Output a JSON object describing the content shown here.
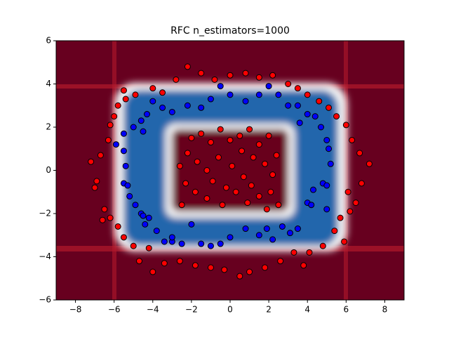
{
  "chart_data": {
    "type": "scatter",
    "title": "RFC n_estimators=1000",
    "xlim": [
      -9,
      9
    ],
    "ylim": [
      -6,
      6
    ],
    "xticks": [
      {
        "value": -8,
        "label": "−8"
      },
      {
        "value": -6,
        "label": "−6"
      },
      {
        "value": -4,
        "label": "−4"
      },
      {
        "value": -2,
        "label": "−2"
      },
      0,
      2,
      4,
      6,
      8
    ],
    "yticks": [
      {
        "value": -6,
        "label": "−6"
      },
      {
        "value": -4,
        "label": "−4"
      },
      {
        "value": -2,
        "label": "−2"
      },
      0,
      2,
      4,
      6
    ],
    "series": [
      {
        "color": "#0000ff",
        "x": [
          -5.9,
          -5.5,
          -5.4,
          -5.5,
          -5.3,
          -5.2,
          -4.9,
          -4.6,
          -4.5,
          -4.4,
          -4.2,
          -3.8,
          -3.4,
          -3.0,
          -2.0,
          -1.5,
          -1.0,
          -0.5,
          0,
          0.8,
          1.5,
          1.9,
          2.2,
          2.7,
          3.1,
          3.5,
          4.0,
          4.2,
          4.3,
          4.8,
          5.0,
          5.0,
          5.2,
          5.1,
          5.0,
          4.7,
          4.4,
          4.0,
          3.6,
          3.5,
          3.0,
          2.5,
          2.0,
          1.5,
          0.8,
          0,
          -0.5,
          -1.0,
          -1.5,
          -2.2,
          -3.0,
          -3.5,
          -4.0,
          -4.3,
          -4.6,
          -5.0,
          -4.5,
          -5.5,
          -3.0,
          -2.5
        ],
        "values": [
          1.2,
          0.9,
          0.2,
          -0.6,
          -0.7,
          -1.2,
          -1.6,
          -2.0,
          -2.1,
          -2.5,
          -2.2,
          -2.8,
          -3.3,
          -3.3,
          -2.5,
          -3.4,
          -3.5,
          -3.4,
          -3.1,
          -2.7,
          -3.0,
          -2.7,
          -3.2,
          -2.6,
          -2.9,
          -2.7,
          -1.5,
          -1.6,
          -0.9,
          -0.6,
          -1.8,
          -0.7,
          0.3,
          1.0,
          1.4,
          2.0,
          2.5,
          2.6,
          2.2,
          3.0,
          3.0,
          3.5,
          3.9,
          3.5,
          3.2,
          3.5,
          3.9,
          3.3,
          2.9,
          3.0,
          2.7,
          2.9,
          3.2,
          2.6,
          2.3,
          2.0,
          1.8,
          1.7,
          -3.1,
          -3.4
        ]
      },
      {
        "color": "#ff0000",
        "x": [
          -7.2,
          -6.9,
          -6.7,
          -6.5,
          -6.3,
          -6.2,
          -6.0,
          -5.8,
          -5.5,
          -5.4,
          -4.9,
          -4.0,
          -3.5,
          -2.8,
          -2.2,
          -1.5,
          -0.8,
          0,
          0.8,
          1.5,
          2.2,
          3.0,
          3.5,
          4.0,
          4.6,
          5.1,
          5.5,
          6.0,
          6.3,
          6.7,
          7.2,
          6.8,
          6.5,
          6.2,
          5.7,
          5.4,
          4.8,
          4.1,
          3.3,
          2.6,
          1.8,
          1.0,
          0.5,
          -0.3,
          -1.0,
          -1.8,
          -2.6,
          -3.4,
          -4.0,
          -4.7,
          -5.0,
          -5.5,
          -6.2,
          -5.8,
          -6.6,
          -7.0,
          -4.2,
          3.8,
          5.9,
          6.1,
          -2.0,
          -1.5,
          -1.0,
          -0.5,
          0,
          0.5,
          1.0,
          1.5,
          2.0,
          -2.2,
          -1.7,
          -1.2,
          -0.6,
          0.1,
          0.7,
          1.2,
          1.8,
          2.2,
          -2.3,
          -1.8,
          -1.2,
          -0.4,
          0.3,
          0.9,
          1.5,
          2.1,
          2.5,
          -2.5,
          -0.9,
          0.6,
          2.4,
          -2.6,
          1.1,
          -0.2,
          1.9
        ],
        "values": [
          0.4,
          -0.5,
          0.7,
          -1.8,
          1.4,
          2.1,
          2.5,
          3.0,
          3.7,
          3.3,
          3.5,
          3.8,
          3.6,
          4.2,
          4.8,
          4.5,
          4.2,
          4.4,
          4.5,
          4.3,
          4.4,
          4.0,
          3.8,
          3.5,
          3.2,
          2.9,
          2.5,
          2.1,
          1.4,
          0.8,
          0.3,
          -0.6,
          -1.5,
          -1.9,
          -2.2,
          -2.8,
          -3.5,
          -3.8,
          -3.8,
          -4.2,
          -4.5,
          -4.7,
          -4.9,
          -4.6,
          -4.5,
          -4.4,
          -4.2,
          -4.3,
          -4.7,
          -4.2,
          -3.5,
          -3.1,
          -2.2,
          -2.6,
          -2.3,
          -0.8,
          -3.6,
          -4.4,
          -3.3,
          -1.0,
          1.5,
          1.7,
          1.3,
          1.9,
          1.4,
          1.6,
          1.9,
          1.2,
          1.6,
          0.8,
          0.4,
          0.0,
          0.6,
          0.2,
          -0.3,
          0.6,
          0.3,
          -0.2,
          -0.6,
          -1.0,
          -1.3,
          -1.6,
          -1.0,
          -1.5,
          -1.2,
          -1.0,
          -1.6,
          -1.6,
          -0.5,
          0.9,
          0.7,
          0.2,
          -0.7,
          -0.8,
          -1.8
        ]
      }
    ]
  }
}
